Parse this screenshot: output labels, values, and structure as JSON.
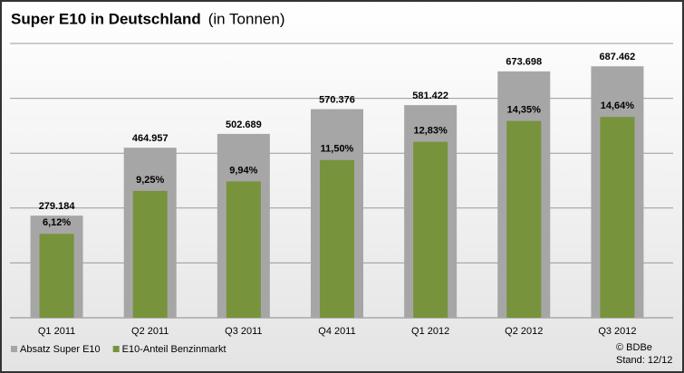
{
  "chart_data": {
    "type": "bar",
    "title": "Super E10 in Deutschland",
    "subtitle": "(in Tonnen)",
    "categories": [
      "Q1 2011",
      "Q2 2011",
      "Q3 2011",
      "Q4 2011",
      "Q1 2012",
      "Q2 2012",
      "Q3 2012"
    ],
    "series": [
      {
        "name": "Absatz Super E10",
        "color": "#a6a6a6",
        "values": [
          279184,
          464957,
          502689,
          570376,
          581422,
          673698,
          687462
        ],
        "value_labels": [
          "279.184",
          "464.957",
          "502.689",
          "570.376",
          "581.422",
          "673.698",
          "687.462"
        ]
      },
      {
        "name": "E10-Anteil Benzinmarkt",
        "color": "#77933c",
        "axis": "y2",
        "values": [
          6.12,
          9.25,
          9.94,
          11.5,
          12.83,
          14.35,
          14.64
        ],
        "value_labels": [
          "6,12%",
          "9,25%",
          "9,94%",
          "11,50%",
          "12,83%",
          "14,35%",
          "14,64%"
        ]
      }
    ],
    "ylim": [
      0,
      750000
    ],
    "yticks": [
      0,
      150000,
      300000,
      450000,
      600000,
      750000
    ],
    "y2lim": [
      0,
      20
    ],
    "grid": true,
    "legend": "bottom-left",
    "source": [
      "© BDBe",
      "Stand: 12/12"
    ]
  }
}
